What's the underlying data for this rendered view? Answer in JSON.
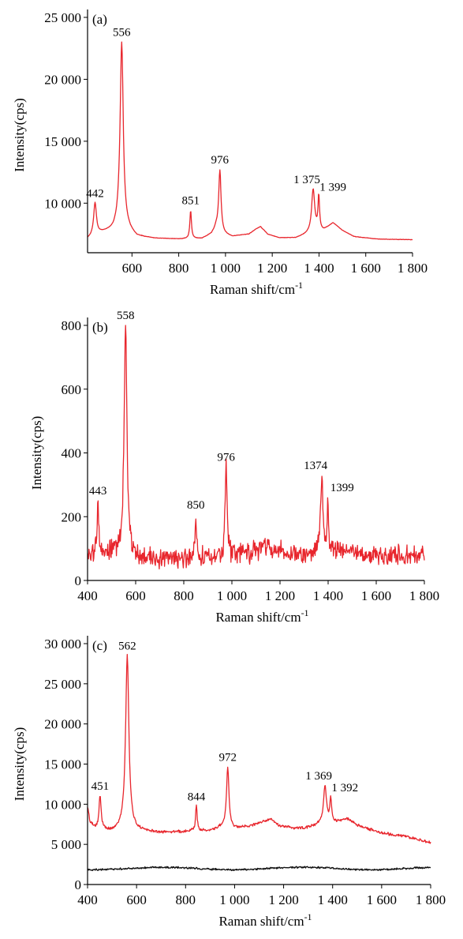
{
  "chart_data": [
    {
      "type": "line",
      "panel_label": "(a)",
      "xlabel": "Raman shift/cm",
      "xlabel_sup": "-1",
      "ylabel": "Intensity(cps)",
      "xlim": [
        410,
        1800
      ],
      "ylim": [
        6000,
        25000
      ],
      "xticks": [
        600,
        800,
        1000,
        1200,
        1400,
        1600,
        1800
      ],
      "xtick_labels": [
        "600",
        "800",
        "1 000",
        "1 200",
        "1 400",
        "1 600",
        "1 800"
      ],
      "yticks": [
        10000,
        15000,
        20000,
        25000
      ],
      "ytick_labels": [
        "10 000",
        "15 000",
        "20 000",
        "25 000"
      ],
      "baseline": [
        [
          410,
          7100
        ],
        [
          430,
          7300
        ],
        [
          470,
          7600
        ],
        [
          520,
          7800
        ],
        [
          545,
          8200
        ],
        [
          575,
          7900
        ],
        [
          620,
          7300
        ],
        [
          700,
          7150
        ],
        [
          800,
          7100
        ],
        [
          900,
          7150
        ],
        [
          940,
          7500
        ],
        [
          960,
          8000
        ],
        [
          990,
          7500
        ],
        [
          1030,
          7300
        ],
        [
          1060,
          7400
        ],
        [
          1100,
          7500
        ],
        [
          1130,
          7900
        ],
        [
          1150,
          8100
        ],
        [
          1180,
          7500
        ],
        [
          1230,
          7200
        ],
        [
          1300,
          7200
        ],
        [
          1350,
          7500
        ],
        [
          1420,
          7800
        ],
        [
          1460,
          8400
        ],
        [
          1500,
          7800
        ],
        [
          1550,
          7300
        ],
        [
          1650,
          7100
        ],
        [
          1800,
          7050
        ]
      ],
      "peaks": [
        {
          "pos": 442,
          "height": 10000,
          "width": 7,
          "label": "442"
        },
        {
          "pos": 556,
          "height": 23000,
          "width": 8,
          "label": "556"
        },
        {
          "pos": 851,
          "height": 9400,
          "width": 4,
          "label": "851"
        },
        {
          "pos": 976,
          "height": 12700,
          "width": 6,
          "label": "976"
        },
        {
          "pos": 1375,
          "height": 11100,
          "width": 8,
          "label": "1 375"
        },
        {
          "pos": 1399,
          "height": 10500,
          "width": 4,
          "label": "1 399"
        }
      ],
      "noise": 25,
      "series": [
        {
          "name": "",
          "color": "#e8262d"
        }
      ]
    },
    {
      "type": "line",
      "panel_label": "(b)",
      "xlabel": "Raman shift/cm",
      "xlabel_sup": "-1",
      "ylabel": "Intensity(cps)",
      "xlim": [
        400,
        1800
      ],
      "ylim": [
        0,
        800
      ],
      "xticks": [
        400,
        600,
        800,
        1000,
        1200,
        1400,
        1600,
        1800
      ],
      "xtick_labels": [
        "400",
        "600",
        "800",
        "1 000",
        "1 200",
        "1 400",
        "1 600",
        "1 800"
      ],
      "yticks": [
        0,
        200,
        400,
        600,
        800
      ],
      "ytick_labels": [
        "0",
        "200",
        "400",
        "600",
        "800"
      ],
      "baseline": [
        [
          400,
          80
        ],
        [
          450,
          70
        ],
        [
          500,
          90
        ],
        [
          600,
          70
        ],
        [
          800,
          70
        ],
        [
          1000,
          75
        ],
        [
          1100,
          90
        ],
        [
          1150,
          110
        ],
        [
          1200,
          90
        ],
        [
          1300,
          80
        ],
        [
          1450,
          90
        ],
        [
          1600,
          80
        ],
        [
          1800,
          75
        ]
      ],
      "peaks": [
        {
          "pos": 443,
          "height": 250,
          "width": 4,
          "label": "443"
        },
        {
          "pos": 558,
          "height": 800,
          "width": 7,
          "label": "558"
        },
        {
          "pos": 850,
          "height": 205,
          "width": 3,
          "label": "850"
        },
        {
          "pos": 976,
          "height": 355,
          "width": 5,
          "label": "976"
        },
        {
          "pos": 1374,
          "height": 330,
          "width": 6,
          "label": "1374"
        },
        {
          "pos": 1399,
          "height": 260,
          "width": 3,
          "label": "1399"
        }
      ],
      "noise": 45,
      "series": [
        {
          "name": "",
          "color": "#e8262d"
        }
      ]
    },
    {
      "type": "line",
      "panel_label": "(c)",
      "xlabel": "Raman shift/cm",
      "xlabel_sup": "-1",
      "ylabel": "Intensity(cps)",
      "xlim": [
        400,
        1800
      ],
      "ylim": [
        0,
        30000
      ],
      "xticks": [
        400,
        600,
        800,
        1000,
        1200,
        1400,
        1600,
        1800
      ],
      "xtick_labels": [
        "400",
        "600",
        "800",
        "1 000",
        "1 200",
        "1 400",
        "1 600",
        "1 800"
      ],
      "yticks": [
        0,
        5000,
        10000,
        15000,
        20000,
        25000,
        30000
      ],
      "ytick_labels": [
        "0",
        "5 000",
        "10 000",
        "15 000",
        "20 000",
        "25 000",
        "30 000"
      ],
      "baseline": [
        [
          400,
          9500
        ],
        [
          410,
          7800
        ],
        [
          430,
          7000
        ],
        [
          500,
          6600
        ],
        [
          540,
          7000
        ],
        [
          600,
          6700
        ],
        [
          700,
          6500
        ],
        [
          800,
          6600
        ],
        [
          900,
          6700
        ],
        [
          950,
          7200
        ],
        [
          1000,
          7000
        ],
        [
          1050,
          7200
        ],
        [
          1100,
          7600
        ],
        [
          1150,
          8200
        ],
        [
          1180,
          7300
        ],
        [
          1250,
          7000
        ],
        [
          1300,
          7100
        ],
        [
          1350,
          7600
        ],
        [
          1420,
          7800
        ],
        [
          1460,
          8200
        ],
        [
          1500,
          7400
        ],
        [
          1600,
          6400
        ],
        [
          1700,
          6000
        ],
        [
          1800,
          5200
        ]
      ],
      "peaks": [
        {
          "pos": 451,
          "height": 11000,
          "width": 5,
          "label": "451"
        },
        {
          "pos": 562,
          "height": 28500,
          "width": 8,
          "label": "562"
        },
        {
          "pos": 844,
          "height": 9700,
          "width": 4,
          "label": "844"
        },
        {
          "pos": 972,
          "height": 14600,
          "width": 6,
          "label": "972"
        },
        {
          "pos": 1369,
          "height": 12300,
          "width": 7,
          "label": "1 369"
        },
        {
          "pos": 1392,
          "height": 10800,
          "width": 4,
          "label": "1 392"
        }
      ],
      "noise": 250,
      "series": [
        {
          "name": "",
          "color": "#e8262d"
        },
        {
          "name": "",
          "color": "#111111",
          "flat": 2000,
          "noise": 170
        }
      ]
    }
  ]
}
